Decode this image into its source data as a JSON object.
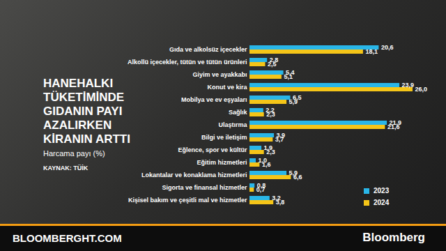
{
  "chart_data": {
    "type": "bar",
    "orientation": "horizontal",
    "title": "HANEHALKI TÜKETİMİNDE GIDANIN PAYI AZALIRKEN KİRANIN ARTTI",
    "subtitle": "Harcama payı (%)",
    "source": "KAYNAK: TÜİK",
    "annotations": [
      "BLOOMBERGHT.COM",
      "Bloomberg"
    ],
    "categories": [
      "Gıda ve alkolsüz içecekler",
      "Alkollü içecekler, tütün ve tütün ürünleri",
      "Giyim ve ayakkabı",
      "Konut ve kira",
      "Mobilya ve ev eşyaları",
      "Sağlık",
      "Ulaştırma",
      "Bilgi ve iletişim",
      "Eğlence, spor ve kültür",
      "Eğitim hizmetleri",
      "Lokantalar ve konaklama hizmetleri",
      "Sigorta ve finansal hizmetler",
      "Kişisel bakım ve çeşitli mal ve hizmetler"
    ],
    "series": [
      {
        "name": "2023",
        "color": "#29b6e8",
        "values": [
          20.6,
          2.8,
          5.4,
          23.9,
          6.5,
          2.2,
          21.9,
          3.9,
          1.9,
          1.0,
          5.9,
          0.8,
          3.2
        ],
        "value_labels": [
          "20,6",
          "2,8",
          "5,4",
          "23,9",
          "6,5",
          "2,2",
          "21,9",
          "3,9",
          "1,9",
          "1,0",
          "5,9",
          "0,8",
          "3,2"
        ]
      },
      {
        "name": "2024",
        "color": "#f5c518",
        "values": [
          18.1,
          2.5,
          5.1,
          26.0,
          5.9,
          2.3,
          21.6,
          3.7,
          2.3,
          1.6,
          6.6,
          0.7,
          3.8
        ],
        "value_labels": [
          "18,1",
          "2,5",
          "5,1",
          "26,0",
          "5,9",
          "2,3",
          "21,6",
          "3,7",
          "2,3",
          "1,6",
          "6,6",
          "0,7",
          "3,8"
        ]
      }
    ],
    "xlim": [
      0,
      26
    ],
    "data_labels": true,
    "tick_labels": "y",
    "grid": false,
    "legend": "bottom-right"
  }
}
